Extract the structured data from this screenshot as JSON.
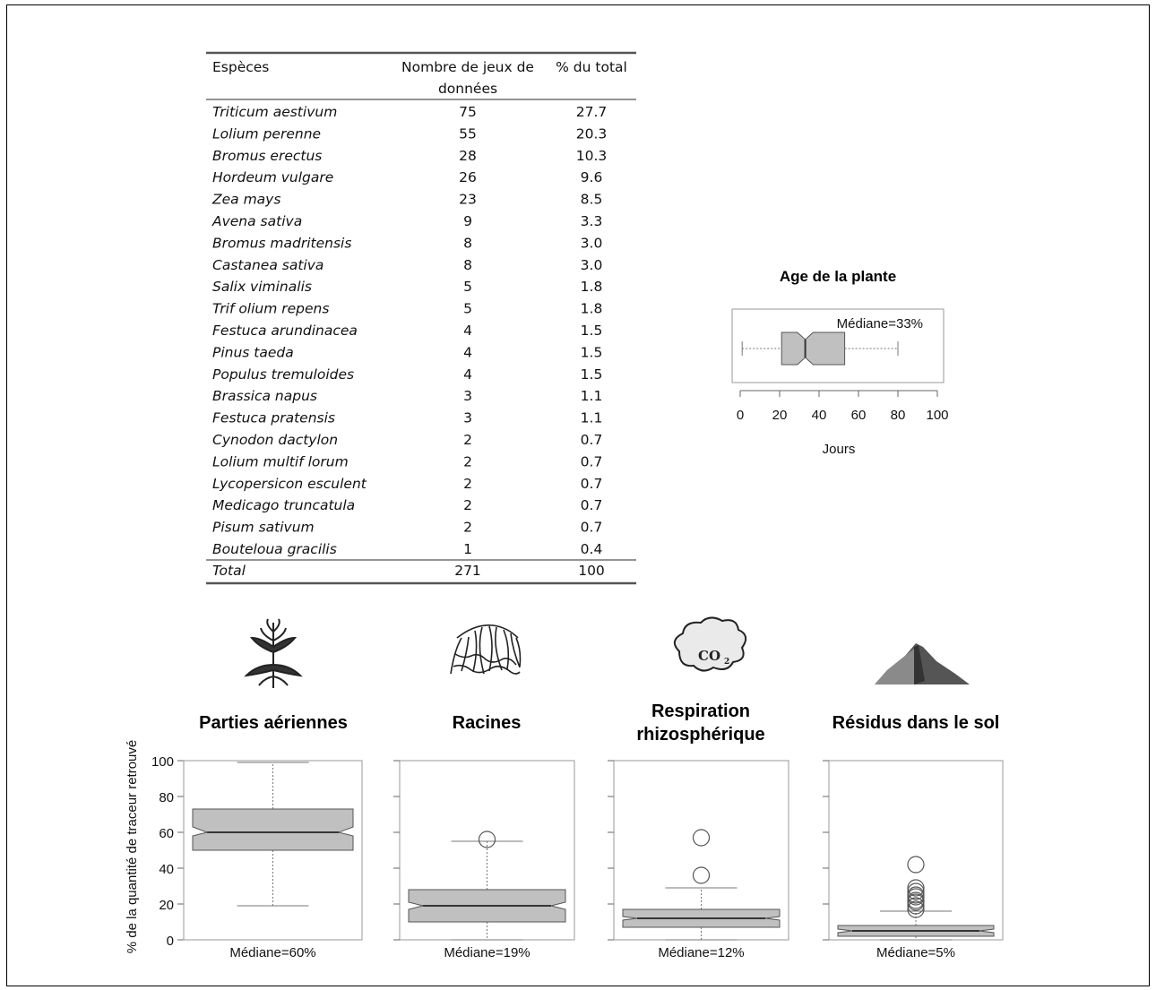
{
  "table": {
    "headers": [
      "Espèces",
      "Nombre de jeux de",
      "données",
      "% du total"
    ],
    "rows": [
      [
        "Triticum aestivum",
        "75",
        "27.7"
      ],
      [
        "Lolium perenne",
        "55",
        "20.3"
      ],
      [
        "Bromus erectus",
        "28",
        "10.3"
      ],
      [
        "Hordeum vulgare",
        "26",
        "9.6"
      ],
      [
        "Zea mays",
        "23",
        "8.5"
      ],
      [
        "Avena sativa",
        "9",
        "3.3"
      ],
      [
        "Bromus madritensis",
        "8",
        "3.0"
      ],
      [
        "Castanea sativa",
        "8",
        "3.0"
      ],
      [
        "Salix viminalis",
        "5",
        "1.8"
      ],
      [
        "Trif olium repens",
        "5",
        "1.8"
      ],
      [
        "Festuca arundinacea",
        "4",
        "1.5"
      ],
      [
        "Pinus taeda",
        "4",
        "1.5"
      ],
      [
        "Populus tremuloides",
        "4",
        "1.5"
      ],
      [
        "Brassica napus",
        "3",
        "1.1"
      ],
      [
        "Festuca pratensis",
        "3",
        "1.1"
      ],
      [
        "Cynodon dactylon",
        "2",
        "0.7"
      ],
      [
        "Lolium multif lorum",
        "2",
        "0.7"
      ],
      [
        "Lycopersicon esculent",
        "2",
        "0.7"
      ],
      [
        "Medicago truncatula",
        "2",
        "0.7"
      ],
      [
        "Pisum sativum",
        "2",
        "0.7"
      ],
      [
        "Bouteloua gracilis",
        "1",
        "0.4"
      ]
    ],
    "total": [
      "Total",
      "271",
      "100"
    ]
  },
  "chart_data": [
    {
      "type": "boxplot",
      "orientation": "horizontal",
      "title": "Age de la plante",
      "xlabel": "Jours",
      "xlim": [
        0,
        100
      ],
      "ticks": [
        "0",
        "20",
        "40",
        "60",
        "80",
        "100"
      ],
      "annotation": "Médiane=33%",
      "box": {
        "whisker_low": 1,
        "q1": 21,
        "median": 33,
        "q3": 53,
        "whisker_high": 80,
        "notch": [
          29,
          37
        ],
        "outliers": []
      }
    },
    {
      "type": "boxplot",
      "orientation": "vertical",
      "ylabel": "% de la quantité de traceur retrouvé",
      "ylim": [
        0,
        100
      ],
      "yticks": [
        "0",
        "20",
        "40",
        "60",
        "80",
        "100"
      ],
      "color": "#c0c0c0",
      "panels": [
        {
          "title": "Parties aériennes",
          "median_label": "Médiane=60%",
          "icon": "wheat-plant-icon",
          "box": {
            "whisker_low": 19,
            "q1": 50,
            "median": 60,
            "q3": 73,
            "whisker_high": 99,
            "notch": [
              58,
              63
            ],
            "outliers": []
          }
        },
        {
          "title": "Racines",
          "median_label": "Médiane=19%",
          "icon": "roots-icon",
          "box": {
            "whisker_low": 0,
            "q1": 10,
            "median": 19,
            "q3": 28,
            "whisker_high": 55,
            "notch": [
              17,
              21
            ],
            "outliers": [
              56
            ]
          }
        },
        {
          "title": "Respiration",
          "title2": "rhizosphérique",
          "median_label": "Médiane=12%",
          "icon": "co2-cloud-icon",
          "co2_text": "CO",
          "box": {
            "whisker_low": 0,
            "q1": 7,
            "median": 12,
            "q3": 17,
            "whisker_high": 29,
            "notch": [
              11,
              13
            ],
            "outliers": [
              36,
              57
            ]
          }
        },
        {
          "title": "Résidus dans le sol",
          "median_label": "Médiane=5%",
          "icon": "soil-pile-icon",
          "box": {
            "whisker_low": 0,
            "q1": 2,
            "median": 5,
            "q3": 8,
            "whisker_high": 16,
            "notch": [
              4,
              6
            ],
            "outliers": [
              17,
              19,
              21,
              22,
              24,
              25,
              27,
              29,
              42
            ]
          }
        }
      ]
    }
  ]
}
